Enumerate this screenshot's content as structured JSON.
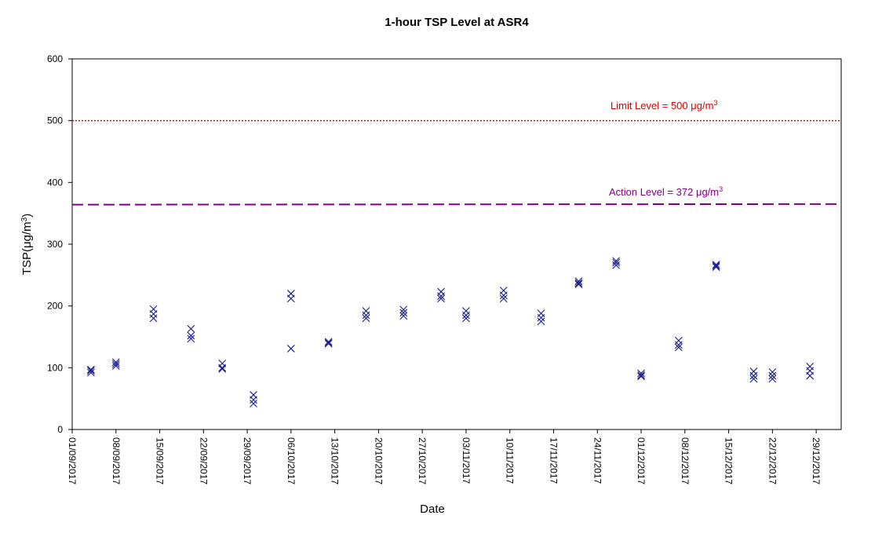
{
  "chart_data": {
    "type": "scatter",
    "title": "1-hour TSP Level at ASR4",
    "xlabel": "Date",
    "ylabel_main": "TSP(",
    "ylabel_unit": "μg/m",
    "ylabel_sup": "3",
    "ylabel_close": ")",
    "ylim": [
      0,
      600
    ],
    "yticks": [
      "0",
      "100",
      "200",
      "300",
      "400",
      "500",
      "600"
    ],
    "xlim": [
      "2017-09-01",
      "2018-01-02"
    ],
    "xticks": [
      "01/09/2017",
      "08/09/2017",
      "15/09/2017",
      "22/09/2017",
      "29/09/2017",
      "06/10/2017",
      "13/10/2017",
      "20/10/2017",
      "27/10/2017",
      "03/11/2017",
      "10/11/2017",
      "17/11/2017",
      "24/11/2017",
      "01/12/2017",
      "08/12/2017",
      "15/12/2017",
      "22/12/2017",
      "29/12/2017"
    ],
    "marker": "x",
    "marker_color": "#1a1a8c",
    "grid": false,
    "reference_lines": [
      {
        "label_main": "Limit Level = 500 ",
        "label_unit": "μg/m",
        "label_sup": "3",
        "value": 500,
        "color": "#dd0000",
        "style": "dotted"
      },
      {
        "label_main": "Action Level = 372 ",
        "label_unit": "μg/m",
        "label_sup": "3",
        "value": 372,
        "color": "#800080",
        "style": "dashed"
      }
    ],
    "series": [
      {
        "points": [
          {
            "x": "2017-09-04",
            "y": 97
          },
          {
            "x": "2017-09-04",
            "y": 92
          },
          {
            "x": "2017-09-04",
            "y": 95
          },
          {
            "x": "2017-09-08",
            "y": 109
          },
          {
            "x": "2017-09-08",
            "y": 103
          },
          {
            "x": "2017-09-08",
            "y": 106
          },
          {
            "x": "2017-09-14",
            "y": 195
          },
          {
            "x": "2017-09-14",
            "y": 187
          },
          {
            "x": "2017-09-14",
            "y": 180
          },
          {
            "x": "2017-09-20",
            "y": 163
          },
          {
            "x": "2017-09-20",
            "y": 152
          },
          {
            "x": "2017-09-20",
            "y": 147
          },
          {
            "x": "2017-09-25",
            "y": 107
          },
          {
            "x": "2017-09-25",
            "y": 100
          },
          {
            "x": "2017-09-25",
            "y": 98
          },
          {
            "x": "2017-09-30",
            "y": 56
          },
          {
            "x": "2017-09-30",
            "y": 48
          },
          {
            "x": "2017-09-30",
            "y": 42
          },
          {
            "x": "2017-10-06",
            "y": 220
          },
          {
            "x": "2017-10-06",
            "y": 212
          },
          {
            "x": "2017-10-06",
            "y": 131
          },
          {
            "x": "2017-10-12",
            "y": 142
          },
          {
            "x": "2017-10-12",
            "y": 140
          },
          {
            "x": "2017-10-12",
            "y": 139
          },
          {
            "x": "2017-10-18",
            "y": 192
          },
          {
            "x": "2017-10-18",
            "y": 185
          },
          {
            "x": "2017-10-18",
            "y": 180
          },
          {
            "x": "2017-10-24",
            "y": 194
          },
          {
            "x": "2017-10-24",
            "y": 189
          },
          {
            "x": "2017-10-24",
            "y": 184
          },
          {
            "x": "2017-10-30",
            "y": 223
          },
          {
            "x": "2017-10-30",
            "y": 216
          },
          {
            "x": "2017-10-30",
            "y": 212
          },
          {
            "x": "2017-11-03",
            "y": 192
          },
          {
            "x": "2017-11-03",
            "y": 185
          },
          {
            "x": "2017-11-03",
            "y": 180
          },
          {
            "x": "2017-11-09",
            "y": 225
          },
          {
            "x": "2017-11-09",
            "y": 217
          },
          {
            "x": "2017-11-09",
            "y": 212
          },
          {
            "x": "2017-11-15",
            "y": 188
          },
          {
            "x": "2017-11-15",
            "y": 181
          },
          {
            "x": "2017-11-15",
            "y": 175
          },
          {
            "x": "2017-11-21",
            "y": 240
          },
          {
            "x": "2017-11-21",
            "y": 237
          },
          {
            "x": "2017-11-21",
            "y": 235
          },
          {
            "x": "2017-11-27",
            "y": 273
          },
          {
            "x": "2017-11-27",
            "y": 270
          },
          {
            "x": "2017-11-27",
            "y": 266
          },
          {
            "x": "2017-12-01",
            "y": 91
          },
          {
            "x": "2017-12-01",
            "y": 88
          },
          {
            "x": "2017-12-01",
            "y": 86
          },
          {
            "x": "2017-12-07",
            "y": 144
          },
          {
            "x": "2017-12-07",
            "y": 137
          },
          {
            "x": "2017-12-07",
            "y": 133
          },
          {
            "x": "2017-12-13",
            "y": 267
          },
          {
            "x": "2017-12-13",
            "y": 265
          },
          {
            "x": "2017-12-13",
            "y": 263
          },
          {
            "x": "2017-12-19",
            "y": 94
          },
          {
            "x": "2017-12-19",
            "y": 87
          },
          {
            "x": "2017-12-19",
            "y": 82
          },
          {
            "x": "2017-12-22",
            "y": 93
          },
          {
            "x": "2017-12-22",
            "y": 87
          },
          {
            "x": "2017-12-22",
            "y": 82
          },
          {
            "x": "2017-12-28",
            "y": 102
          },
          {
            "x": "2017-12-28",
            "y": 95
          },
          {
            "x": "2017-12-28",
            "y": 87
          }
        ]
      }
    ]
  }
}
